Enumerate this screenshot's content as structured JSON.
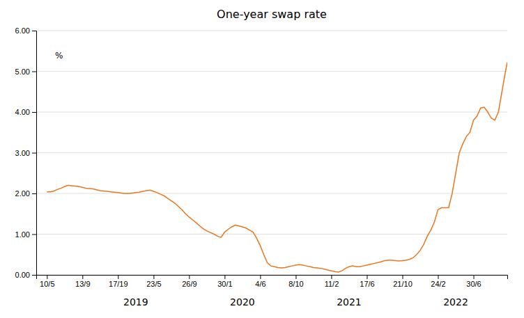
{
  "chart_data": {
    "type": "line",
    "title": "One-year swap rate",
    "ylabel": "%",
    "color": "#E87722",
    "grid": true,
    "xlim": [
      -0.3,
      12.95
    ],
    "xticks": [
      {
        "value": 0,
        "label": "10/5"
      },
      {
        "value": 1,
        "label": "13/9"
      },
      {
        "value": 2,
        "label": "17/19"
      },
      {
        "value": 3,
        "label": "23/5"
      },
      {
        "value": 4,
        "label": "26/9"
      },
      {
        "value": 5,
        "label": "30/1"
      },
      {
        "value": 6,
        "label": "4/6"
      },
      {
        "value": 7,
        "label": "8/10"
      },
      {
        "value": 8,
        "label": "11/2"
      },
      {
        "value": 9,
        "label": "17/6"
      },
      {
        "value": 10,
        "label": "21/10"
      },
      {
        "value": 11,
        "label": "24/2"
      },
      {
        "value": 12,
        "label": "30/6"
      }
    ],
    "ylim": [
      0.0,
      6.0
    ],
    "yticks": [
      {
        "value": 0.0,
        "label": "0.00"
      },
      {
        "value": 1.0,
        "label": "1.00"
      },
      {
        "value": 2.0,
        "label": "2.00"
      },
      {
        "value": 3.0,
        "label": "3.00"
      },
      {
        "value": 4.0,
        "label": "4.00"
      },
      {
        "value": 5.0,
        "label": "5.00"
      },
      {
        "value": 6.0,
        "label": "6.00"
      }
    ],
    "annotations": [
      {
        "text": "2019",
        "x": 2.5
      },
      {
        "text": "2020",
        "x": 5.5
      },
      {
        "text": "2021",
        "x": 8.5
      },
      {
        "text": "2022",
        "x": 11.5
      }
    ],
    "x": [
      0,
      0.1,
      0.2,
      0.3,
      0.4,
      0.5,
      0.6,
      0.7,
      0.8,
      0.9,
      1.0,
      1.1,
      1.2,
      1.3,
      1.4,
      1.5,
      1.6,
      1.7,
      1.8,
      1.9,
      2.0,
      2.1,
      2.2,
      2.3,
      2.4,
      2.5,
      2.6,
      2.7,
      2.8,
      2.9,
      3.0,
      3.1,
      3.2,
      3.3,
      3.4,
      3.5,
      3.6,
      3.7,
      3.8,
      3.9,
      4.0,
      4.1,
      4.2,
      4.3,
      4.4,
      4.5,
      4.6,
      4.7,
      4.8,
      4.9,
      5.0,
      5.1,
      5.2,
      5.3,
      5.4,
      5.5,
      5.6,
      5.7,
      5.8,
      5.9,
      6.0,
      6.1,
      6.2,
      6.3,
      6.4,
      6.5,
      6.6,
      6.7,
      6.8,
      6.9,
      7.0,
      7.1,
      7.2,
      7.3,
      7.4,
      7.5,
      7.6,
      7.7,
      7.8,
      7.9,
      8.0,
      8.1,
      8.2,
      8.3,
      8.4,
      8.5,
      8.6,
      8.7,
      8.8,
      8.9,
      9.0,
      9.1,
      9.2,
      9.3,
      9.4,
      9.5,
      9.6,
      9.7,
      9.8,
      9.9,
      10.0,
      10.1,
      10.2,
      10.3,
      10.4,
      10.5,
      10.6,
      10.7,
      10.8,
      10.9,
      11.0,
      11.1,
      11.2,
      11.3,
      11.4,
      11.5,
      11.6,
      11.7,
      11.8,
      11.9,
      12.0,
      12.1,
      12.2,
      12.3,
      12.4,
      12.5,
      12.6,
      12.7,
      12.8,
      12.9,
      12.95
    ],
    "values": [
      2.04,
      2.04,
      2.06,
      2.1,
      2.13,
      2.17,
      2.2,
      2.19,
      2.18,
      2.17,
      2.15,
      2.13,
      2.12,
      2.11,
      2.09,
      2.07,
      2.06,
      2.05,
      2.04,
      2.03,
      2.02,
      2.01,
      2.0,
      2.0,
      2.01,
      2.02,
      2.03,
      2.05,
      2.07,
      2.08,
      2.05,
      2.02,
      1.98,
      1.94,
      1.88,
      1.82,
      1.76,
      1.68,
      1.6,
      1.5,
      1.42,
      1.35,
      1.28,
      1.2,
      1.13,
      1.08,
      1.04,
      1.0,
      0.95,
      0.92,
      1.05,
      1.12,
      1.18,
      1.22,
      1.2,
      1.18,
      1.15,
      1.1,
      1.05,
      0.9,
      0.72,
      0.5,
      0.3,
      0.22,
      0.2,
      0.18,
      0.17,
      0.18,
      0.2,
      0.22,
      0.24,
      0.25,
      0.24,
      0.22,
      0.2,
      0.18,
      0.17,
      0.16,
      0.14,
      0.12,
      0.1,
      0.08,
      0.07,
      0.1,
      0.16,
      0.2,
      0.22,
      0.2,
      0.2,
      0.22,
      0.24,
      0.26,
      0.28,
      0.3,
      0.32,
      0.35,
      0.36,
      0.36,
      0.35,
      0.34,
      0.35,
      0.36,
      0.38,
      0.42,
      0.5,
      0.6,
      0.75,
      0.95,
      1.1,
      1.3,
      1.6,
      1.65,
      1.65,
      1.65,
      2.0,
      2.5,
      3.0,
      3.22,
      3.4,
      3.5,
      3.8,
      3.9,
      4.1,
      4.12,
      4.0,
      3.85,
      3.8,
      4.0,
      4.5,
      5.0,
      5.22
    ]
  }
}
